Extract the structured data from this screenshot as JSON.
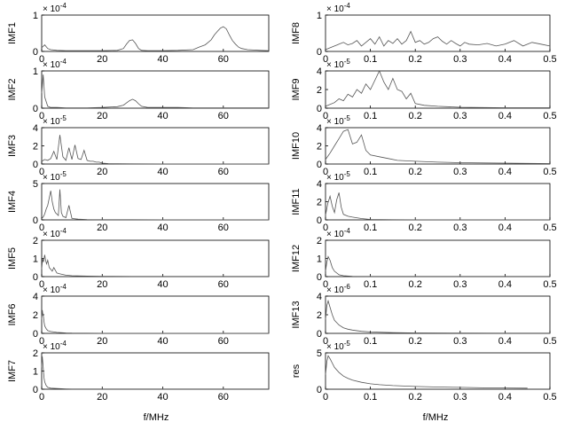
{
  "chart_data": {
    "type": "line",
    "x_axis_label": "f/MHz",
    "panels": [
      {
        "name": "IMF1",
        "col": 0,
        "row": 0,
        "exponent": "× 10",
        "exp_power": "-4",
        "ylim": [
          0,
          1
        ],
        "yticks": [
          "0",
          "1"
        ],
        "xlim": [
          0,
          75
        ],
        "xticks": [
          0,
          20,
          40,
          60
        ],
        "xtick_labels": [
          "0",
          "20",
          "40",
          "60"
        ],
        "x": [
          0,
          1,
          2,
          3,
          5,
          8,
          10,
          15,
          20,
          25,
          27,
          28,
          29,
          30,
          31,
          32,
          33,
          35,
          40,
          45,
          50,
          52,
          54,
          55,
          56,
          57,
          58,
          59,
          60,
          61,
          62,
          63,
          64,
          65,
          66,
          68,
          70,
          72,
          75
        ],
        "y": [
          0.1,
          0.18,
          0.08,
          0.05,
          0.03,
          0.02,
          0.02,
          0.02,
          0.02,
          0.03,
          0.08,
          0.2,
          0.3,
          0.32,
          0.22,
          0.08,
          0.03,
          0.02,
          0.02,
          0.03,
          0.05,
          0.12,
          0.18,
          0.25,
          0.32,
          0.45,
          0.55,
          0.64,
          0.68,
          0.62,
          0.45,
          0.3,
          0.2,
          0.12,
          0.08,
          0.05,
          0.04,
          0.03,
          0.02
        ]
      },
      {
        "name": "IMF2",
        "col": 0,
        "row": 1,
        "exponent": "× 10",
        "exp_power": "-4",
        "ylim": [
          0,
          1
        ],
        "yticks": [
          "0",
          "1"
        ],
        "xlim": [
          0,
          75
        ],
        "xticks": [
          0,
          20,
          40,
          60
        ],
        "xtick_labels": [
          "0",
          "20",
          "40",
          "60"
        ],
        "x": [
          0,
          0.5,
          1,
          2,
          3,
          5,
          8,
          10,
          15,
          20,
          25,
          27,
          28,
          29,
          30,
          31,
          32,
          33,
          35,
          40,
          45,
          50,
          55,
          60,
          65,
          70,
          75
        ],
        "y": [
          0.4,
          0.9,
          0.3,
          0.05,
          0.02,
          0.02,
          0.01,
          0.01,
          0.01,
          0.02,
          0.04,
          0.08,
          0.14,
          0.2,
          0.24,
          0.2,
          0.12,
          0.05,
          0.02,
          0.02,
          0.02,
          0.01,
          0.01,
          0.01,
          0.01,
          0.01,
          0.01
        ]
      },
      {
        "name": "IMF3",
        "col": 0,
        "row": 2,
        "exponent": "× 10",
        "exp_power": "-5",
        "ylim": [
          0,
          4
        ],
        "yticks": [
          "0",
          "2",
          "4"
        ],
        "xlim": [
          0,
          75
        ],
        "xticks": [
          0,
          20,
          40,
          60
        ],
        "xtick_labels": [
          "0",
          "20",
          "40",
          "60"
        ],
        "x": [
          0,
          1,
          2,
          3,
          4,
          5,
          6,
          7,
          8,
          9,
          10,
          11,
          12,
          13,
          14,
          15,
          16,
          17,
          18,
          19,
          20,
          22,
          25,
          30,
          40,
          50,
          60,
          75
        ],
        "y": [
          0.3,
          0.5,
          0.4,
          0.6,
          1.4,
          0.5,
          3.2,
          0.8,
          0.4,
          1.8,
          0.5,
          2.1,
          0.6,
          0.5,
          1.5,
          0.4,
          0.3,
          0.3,
          0.2,
          0.2,
          0.1,
          0.05,
          0.03,
          0.02,
          0.01,
          0.01,
          0.01,
          0.01
        ]
      },
      {
        "name": "IMF4",
        "col": 0,
        "row": 3,
        "exponent": "× 10",
        "exp_power": "-5",
        "ylim": [
          0,
          5
        ],
        "yticks": [
          "0",
          "5"
        ],
        "xlim": [
          0,
          75
        ],
        "xticks": [
          0,
          20,
          40,
          60
        ],
        "xtick_labels": [
          "0",
          "20",
          "40",
          "60"
        ],
        "x": [
          0,
          0.5,
          1,
          1.5,
          2,
          2.5,
          3,
          3.5,
          4,
          4.5,
          5,
          5.5,
          6,
          6.5,
          7,
          8,
          9,
          10,
          12,
          15,
          20,
          30,
          40,
          75
        ],
        "y": [
          0.2,
          0.4,
          0.8,
          1.5,
          2.0,
          3.0,
          4.0,
          2.5,
          1.5,
          1.0,
          0.8,
          0.6,
          4.2,
          1.0,
          0.5,
          0.3,
          2.0,
          0.2,
          0.1,
          0.05,
          0.03,
          0.02,
          0.01,
          0.01
        ]
      },
      {
        "name": "IMF5",
        "col": 0,
        "row": 4,
        "exponent": "× 10",
        "exp_power": "-4",
        "ylim": [
          0,
          2
        ],
        "yticks": [
          "0",
          "1",
          "2"
        ],
        "xlim": [
          0,
          75
        ],
        "xticks": [
          0,
          20,
          40,
          60
        ],
        "xtick_labels": [
          "0",
          "20",
          "40",
          "60"
        ],
        "x": [
          0,
          0.3,
          0.6,
          1,
          1.3,
          1.6,
          2,
          2.5,
          3,
          3.5,
          4,
          5,
          6,
          8,
          10,
          15,
          20,
          30,
          75
        ],
        "y": [
          0.4,
          1.0,
          0.8,
          1.2,
          0.9,
          0.7,
          0.9,
          0.5,
          0.4,
          0.3,
          0.5,
          0.2,
          0.15,
          0.08,
          0.05,
          0.03,
          0.02,
          0.01,
          0.01
        ]
      },
      {
        "name": "IMF6",
        "col": 0,
        "row": 5,
        "exponent": "× 10",
        "exp_power": "-4",
        "ylim": [
          0,
          4
        ],
        "yticks": [
          "0",
          "2",
          "4"
        ],
        "xlim": [
          0,
          75
        ],
        "xticks": [
          0,
          20,
          40,
          60
        ],
        "xtick_labels": [
          "0",
          "20",
          "40",
          "60"
        ],
        "x": [
          0,
          0.2,
          0.4,
          0.6,
          0.8,
          1,
          1.5,
          2,
          3,
          4,
          5,
          8,
          10,
          20,
          75
        ],
        "y": [
          1.5,
          2.5,
          2.0,
          1.8,
          1.2,
          0.8,
          0.5,
          0.3,
          0.2,
          0.15,
          0.1,
          0.05,
          0.03,
          0.01,
          0.01
        ]
      },
      {
        "name": "IMF7",
        "col": 0,
        "row": 6,
        "exponent": "× 10",
        "exp_power": "-4",
        "ylim": [
          0,
          2
        ],
        "yticks": [
          "0",
          "1",
          "2"
        ],
        "xlim": [
          0,
          75
        ],
        "xticks": [
          0,
          20,
          40,
          60
        ],
        "xtick_labels": [
          "0",
          "20",
          "40",
          "60"
        ],
        "x": [
          0,
          0.2,
          0.4,
          0.6,
          0.8,
          1,
          1.5,
          2,
          3,
          5,
          8,
          10,
          20,
          75
        ],
        "y": [
          1.2,
          1.8,
          1.4,
          1.0,
          0.6,
          0.4,
          0.2,
          0.1,
          0.06,
          0.04,
          0.02,
          0.01,
          0.01,
          0.01
        ]
      },
      {
        "name": "IMF8",
        "col": 1,
        "row": 0,
        "exponent": "× 10",
        "exp_power": "-4",
        "ylim": [
          0,
          1
        ],
        "yticks": [
          "0",
          "1"
        ],
        "xlim": [
          0,
          0.5
        ],
        "xticks": [
          0,
          0.1,
          0.2,
          0.3,
          0.4,
          0.5
        ],
        "xtick_labels": [
          "0",
          "0.1",
          "0.2",
          "0.3",
          "0.4",
          "0.5"
        ],
        "x": [
          0,
          0.01,
          0.02,
          0.03,
          0.04,
          0.05,
          0.06,
          0.07,
          0.08,
          0.09,
          0.1,
          0.11,
          0.12,
          0.13,
          0.14,
          0.15,
          0.16,
          0.17,
          0.18,
          0.19,
          0.2,
          0.21,
          0.22,
          0.23,
          0.24,
          0.25,
          0.26,
          0.27,
          0.28,
          0.29,
          0.3,
          0.31,
          0.32,
          0.34,
          0.36,
          0.38,
          0.4,
          0.42,
          0.44,
          0.46,
          0.48,
          0.5
        ],
        "y": [
          0.05,
          0.1,
          0.15,
          0.2,
          0.25,
          0.18,
          0.22,
          0.3,
          0.15,
          0.25,
          0.35,
          0.2,
          0.4,
          0.15,
          0.3,
          0.22,
          0.35,
          0.2,
          0.3,
          0.55,
          0.25,
          0.3,
          0.2,
          0.25,
          0.35,
          0.4,
          0.28,
          0.2,
          0.3,
          0.22,
          0.15,
          0.25,
          0.2,
          0.18,
          0.22,
          0.15,
          0.2,
          0.3,
          0.15,
          0.25,
          0.2,
          0.15
        ]
      },
      {
        "name": "IMF9",
        "col": 1,
        "row": 1,
        "exponent": "× 10",
        "exp_power": "-5",
        "ylim": [
          0,
          4
        ],
        "yticks": [
          "0",
          "2",
          "4"
        ],
        "xlim": [
          0,
          0.5
        ],
        "xticks": [
          0,
          0.1,
          0.2,
          0.3,
          0.4,
          0.5
        ],
        "xtick_labels": [
          "0",
          "0.1",
          "0.2",
          "0.3",
          "0.4",
          "0.5"
        ],
        "x": [
          0,
          0.02,
          0.03,
          0.04,
          0.05,
          0.06,
          0.07,
          0.08,
          0.09,
          0.1,
          0.11,
          0.12,
          0.13,
          0.14,
          0.15,
          0.16,
          0.17,
          0.18,
          0.19,
          0.2,
          0.22,
          0.25,
          0.3,
          0.4,
          0.5
        ],
        "y": [
          0.2,
          0.6,
          1.0,
          0.8,
          1.5,
          1.2,
          2.0,
          1.6,
          2.6,
          2.0,
          3.0,
          4.2,
          2.8,
          2.0,
          3.2,
          2.0,
          1.8,
          1.0,
          1.6,
          0.5,
          0.3,
          0.2,
          0.1,
          0.05,
          0.05
        ]
      },
      {
        "name": "IMF10",
        "col": 1,
        "row": 2,
        "exponent": "× 10",
        "exp_power": "-5",
        "ylim": [
          0,
          4
        ],
        "yticks": [
          "0",
          "2",
          "4"
        ],
        "xlim": [
          0,
          0.5
        ],
        "xticks": [
          0,
          0.1,
          0.2,
          0.3,
          0.4,
          0.5
        ],
        "xtick_labels": [
          "0",
          "0.1",
          "0.2",
          "0.3",
          "0.4",
          "0.5"
        ],
        "x": [
          0,
          0.01,
          0.02,
          0.03,
          0.04,
          0.05,
          0.06,
          0.07,
          0.08,
          0.09,
          0.1,
          0.12,
          0.14,
          0.16,
          0.2,
          0.25,
          0.3,
          0.4,
          0.5
        ],
        "y": [
          0.5,
          1.2,
          2.0,
          2.8,
          3.6,
          3.8,
          2.2,
          2.4,
          3.2,
          1.5,
          1.0,
          0.8,
          0.6,
          0.4,
          0.3,
          0.2,
          0.15,
          0.1,
          0.05
        ]
      },
      {
        "name": "IMF11",
        "col": 1,
        "row": 3,
        "exponent": "× 10",
        "exp_power": "-5",
        "ylim": [
          0,
          4
        ],
        "yticks": [
          "0",
          "2",
          "4"
        ],
        "xlim": [
          0,
          0.5
        ],
        "xticks": [
          0,
          0.1,
          0.2,
          0.3,
          0.4,
          0.5
        ],
        "xtick_labels": [
          "0",
          "0.1",
          "0.2",
          "0.3",
          "0.4",
          "0.5"
        ],
        "x": [
          0,
          0.005,
          0.01,
          0.015,
          0.02,
          0.025,
          0.03,
          0.035,
          0.04,
          0.05,
          0.06,
          0.08,
          0.1,
          0.15,
          0.2,
          0.3,
          0.5
        ],
        "y": [
          0.5,
          1.8,
          2.6,
          1.5,
          0.8,
          2.2,
          3.0,
          1.4,
          0.6,
          0.4,
          0.3,
          0.15,
          0.05,
          0.02,
          0.01,
          0.01,
          0.01
        ]
      },
      {
        "name": "IMF12",
        "col": 1,
        "row": 4,
        "exponent": "× 10",
        "exp_power": "-4",
        "ylim": [
          0,
          2
        ],
        "yticks": [
          "0",
          "1",
          "2"
        ],
        "xlim": [
          0,
          0.5
        ],
        "xticks": [
          0,
          0.1,
          0.2,
          0.3,
          0.4,
          0.5
        ],
        "xtick_labels": [
          "0",
          "0.1",
          "0.2",
          "0.3",
          "0.4",
          "0.5"
        ],
        "x": [
          0,
          0.003,
          0.006,
          0.01,
          0.015,
          0.02,
          0.03,
          0.04,
          0.06,
          0.1,
          0.2,
          0.5
        ],
        "y": [
          0.3,
          0.8,
          1.1,
          0.9,
          0.5,
          0.3,
          0.1,
          0.05,
          0.02,
          0.01,
          0.01,
          0.01
        ]
      },
      {
        "name": "IMF13",
        "col": 1,
        "row": 5,
        "exponent": "× 10",
        "exp_power": "-6",
        "ylim": [
          0,
          4
        ],
        "yticks": [
          "0",
          "2",
          "4"
        ],
        "xlim": [
          0,
          0.5
        ],
        "xticks": [
          0,
          0.1,
          0.2,
          0.3,
          0.4,
          0.5
        ],
        "xtick_labels": [
          "0",
          "0.1",
          "0.2",
          "0.3",
          "0.4",
          "0.5"
        ],
        "x": [
          0,
          0.003,
          0.006,
          0.01,
          0.015,
          0.02,
          0.03,
          0.04,
          0.05,
          0.06,
          0.08,
          0.1,
          0.15,
          0.2,
          0.3,
          0.4,
          0.5
        ],
        "y": [
          1.5,
          3.0,
          3.5,
          2.8,
          2.0,
          1.4,
          0.9,
          0.6,
          0.45,
          0.35,
          0.22,
          0.15,
          0.08,
          0.05,
          0.03,
          0.02,
          0.02
        ]
      },
      {
        "name": "res",
        "col": 1,
        "row": 6,
        "exponent": "× 10",
        "exp_power": "-5",
        "ylim": [
          0,
          5
        ],
        "yticks": [
          "0",
          "5"
        ],
        "xlim": [
          0,
          0.5
        ],
        "xticks": [
          0,
          0.1,
          0.2,
          0.3,
          0.4,
          0.5
        ],
        "xtick_labels": [
          "0",
          "0.1",
          "0.2",
          "0.3",
          "0.4",
          "0.5"
        ],
        "x": [
          0,
          0.003,
          0.006,
          0.01,
          0.015,
          0.02,
          0.03,
          0.04,
          0.05,
          0.06,
          0.08,
          0.1,
          0.12,
          0.15,
          0.2,
          0.25,
          0.3,
          0.35,
          0.4,
          0.45
        ],
        "y": [
          2.0,
          3.8,
          4.6,
          4.2,
          3.6,
          3.0,
          2.3,
          1.8,
          1.5,
          1.25,
          0.95,
          0.75,
          0.62,
          0.5,
          0.38,
          0.3,
          0.25,
          0.2,
          0.17,
          0.15
        ]
      }
    ]
  }
}
